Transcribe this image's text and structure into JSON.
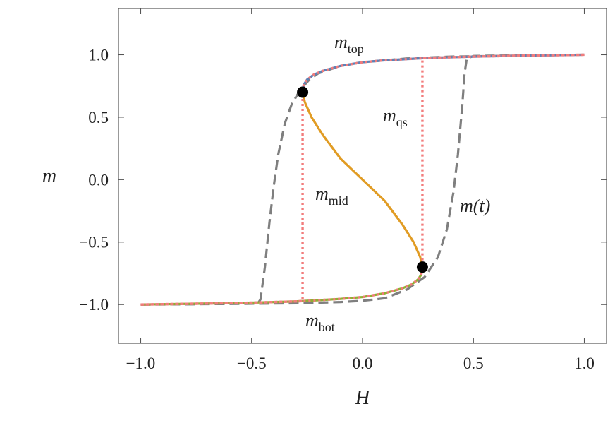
{
  "chart_data": {
    "type": "line",
    "xlabel": "H",
    "ylabel": "m",
    "xlim": [
      -1.1,
      1.1
    ],
    "ylim": [
      -1.31,
      1.37
    ],
    "xticks": [
      {
        "value": -1,
        "label": "−1.0"
      },
      {
        "value": -0.5,
        "label": "−0.5"
      },
      {
        "value": 0,
        "label": "0.0"
      },
      0.5,
      {
        "value": 1,
        "label": "1.0"
      }
    ],
    "yticks": [
      {
        "value": -1,
        "label": "−1.0"
      },
      {
        "value": -0.5,
        "label": "−0.5"
      },
      {
        "value": 0,
        "label": "0.0"
      },
      0.5,
      {
        "value": 1,
        "label": "1.0"
      }
    ],
    "series": [
      {
        "color": "#7f7f7f",
        "style": "dashed",
        "x": [
          -1,
          -0.8,
          -0.6,
          -0.5,
          -0.47,
          -0.46,
          -0.44,
          -0.42,
          -0.4,
          -0.38,
          -0.35,
          -0.32,
          -0.28,
          -0.24,
          -0.2,
          -0.1,
          0,
          0.2,
          0.4,
          0.6,
          0.8,
          1
        ],
        "values": [
          -1,
          -0.998,
          -0.993,
          -0.99,
          -0.985,
          -0.96,
          -0.7,
          -0.35,
          -0.05,
          0.2,
          0.45,
          0.6,
          0.72,
          0.8,
          0.85,
          0.91,
          0.94,
          0.97,
          0.985,
          0.99,
          0.995,
          1
        ]
      },
      {
        "color": "#7f7f7f",
        "style": "dashed",
        "x": [
          -1,
          -0.6,
          -0.3,
          -0.1,
          0,
          0.1,
          0.2,
          0.28,
          0.34,
          0.38,
          0.41,
          0.43,
          0.45,
          0.46,
          0.47,
          0.5,
          0.7,
          1
        ],
        "values": [
          -1,
          -0.995,
          -0.99,
          -0.98,
          -0.97,
          -0.95,
          -0.88,
          -0.78,
          -0.62,
          -0.4,
          -0.1,
          0.2,
          0.6,
          0.85,
          0.97,
          0.99,
          0.995,
          1
        ]
      },
      {
        "color": "#5e81b5",
        "style": "solid",
        "x": [
          -0.27,
          -0.265,
          -0.25,
          -0.22,
          -0.18,
          -0.1,
          0,
          0.1,
          0.2,
          0.3,
          0.5,
          0.7,
          1
        ],
        "values": [
          0.7,
          0.76,
          0.8,
          0.84,
          0.87,
          0.91,
          0.94,
          0.955,
          0.965,
          0.975,
          0.985,
          0.992,
          1
        ]
      },
      {
        "color": "#8fb032",
        "style": "solid",
        "x": [
          -1,
          -0.7,
          -0.5,
          -0.3,
          -0.2,
          -0.1,
          0,
          0.1,
          0.18,
          0.22,
          0.25,
          0.265,
          0.27
        ],
        "values": [
          -1,
          -0.992,
          -0.985,
          -0.975,
          -0.965,
          -0.955,
          -0.94,
          -0.91,
          -0.87,
          -0.84,
          -0.8,
          -0.76,
          -0.7
        ]
      },
      {
        "color": "#e19c24",
        "style": "solid",
        "x": [
          -0.27,
          -0.26,
          -0.23,
          -0.18,
          -0.1,
          0,
          0.1,
          0.18,
          0.23,
          0.26,
          0.27
        ],
        "values": [
          0.7,
          0.62,
          0.5,
          0.36,
          0.17,
          0,
          -0.17,
          -0.36,
          -0.5,
          -0.62,
          -0.7
        ]
      },
      {
        "color": "#f27c7c",
        "style": "dotted",
        "x": [
          -1,
          -0.7,
          -0.5,
          -0.3,
          -0.2,
          -0.1,
          0,
          0.1,
          0.18,
          0.22,
          0.25,
          0.265,
          0.27,
          0.27,
          0.3,
          0.5,
          0.7,
          1
        ],
        "values": [
          -1,
          -0.992,
          -0.985,
          -0.975,
          -0.965,
          -0.955,
          -0.94,
          -0.91,
          -0.87,
          -0.84,
          -0.8,
          -0.76,
          -0.7,
          0.972,
          0.975,
          0.985,
          0.992,
          1
        ]
      },
      {
        "color": "#f27c7c",
        "style": "dotted",
        "x": [
          1,
          0.7,
          0.5,
          0.3,
          0.2,
          0.1,
          0,
          -0.1,
          -0.18,
          -0.22,
          -0.25,
          -0.265,
          -0.27,
          -0.27,
          -0.3,
          -0.5,
          -0.7,
          -1
        ],
        "values": [
          1,
          0.992,
          0.985,
          0.975,
          0.965,
          0.955,
          0.94,
          0.91,
          0.87,
          0.84,
          0.8,
          0.76,
          0.7,
          -0.972,
          -0.975,
          -0.985,
          -0.992,
          -1
        ]
      },
      {
        "color": "#000000",
        "style": "markers",
        "x": [
          -0.27,
          0.27
        ],
        "values": [
          0.7,
          -0.7
        ]
      }
    ],
    "annotations": [
      {
        "text": "m",
        "subscript": "top"
      },
      {
        "text": "m",
        "subscript": "qs"
      },
      {
        "text": "m",
        "subscript": "mid"
      },
      {
        "text": "m(t)"
      },
      {
        "text": "m",
        "subscript": "bot"
      }
    ]
  }
}
